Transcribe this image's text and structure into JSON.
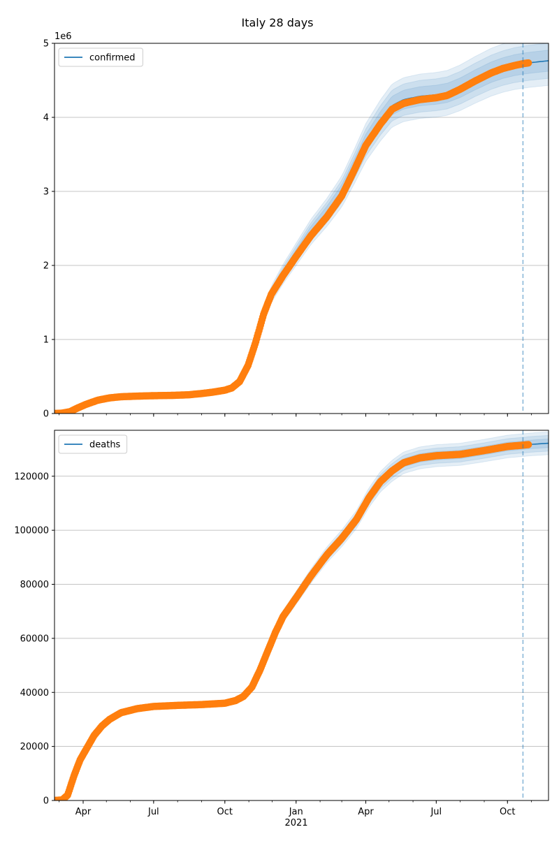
{
  "figure": {
    "title": "Italy 28 days",
    "xaxis_year_label": "2021",
    "forecast_marker_date": "2021-10-21",
    "colors": {
      "model_line": "#1f77b4",
      "observed": "#ff7f0e",
      "band": "#1f77b4",
      "grid": "#b0b0b0",
      "forecast_line": "#1f77b4"
    }
  },
  "chart_data": [
    {
      "type": "line",
      "name": "confirmed-panel",
      "legend": "confirmed",
      "legend_position": "top-left",
      "offset_label": "1e6",
      "x_range": [
        "2020-02-24",
        "2021-11-23"
      ],
      "ylim": [
        0,
        5000000
      ],
      "yticks": [
        0,
        1000000,
        2000000,
        3000000,
        4000000,
        5000000
      ],
      "ytick_labels": [
        "0",
        "1",
        "2",
        "3",
        "4",
        "5"
      ],
      "grid": "y",
      "xticks": [
        {
          "date": "2020-04-01",
          "label": "Apr"
        },
        {
          "date": "2020-07-01",
          "label": "Jul"
        },
        {
          "date": "2020-10-01",
          "label": "Oct"
        },
        {
          "date": "2021-01-01",
          "label": "Jan"
        },
        {
          "date": "2021-04-01",
          "label": "Apr"
        },
        {
          "date": "2021-07-01",
          "label": "Jul"
        },
        {
          "date": "2021-10-01",
          "label": "Oct"
        }
      ],
      "observed": [
        [
          "2020-02-24",
          0
        ],
        [
          "2020-03-05",
          5000
        ],
        [
          "2020-03-15",
          25000
        ],
        [
          "2020-03-25",
          75000
        ],
        [
          "2020-04-05",
          125000
        ],
        [
          "2020-04-20",
          180000
        ],
        [
          "2020-05-05",
          211000
        ],
        [
          "2020-05-20",
          227000
        ],
        [
          "2020-06-10",
          235000
        ],
        [
          "2020-07-01",
          241000
        ],
        [
          "2020-07-25",
          245000
        ],
        [
          "2020-08-15",
          253000
        ],
        [
          "2020-09-01",
          270000
        ],
        [
          "2020-09-15",
          288000
        ],
        [
          "2020-10-01",
          315000
        ],
        [
          "2020-10-10",
          345000
        ],
        [
          "2020-10-20",
          430000
        ],
        [
          "2020-10-31",
          650000
        ],
        [
          "2020-11-10",
          970000
        ],
        [
          "2020-11-20",
          1340000
        ],
        [
          "2020-11-30",
          1610000
        ],
        [
          "2020-12-15",
          1860000
        ],
        [
          "2021-01-01",
          2120000
        ],
        [
          "2021-01-20",
          2400000
        ],
        [
          "2021-02-10",
          2660000
        ],
        [
          "2021-03-01",
          2940000
        ],
        [
          "2021-03-15",
          3240000
        ],
        [
          "2021-04-01",
          3620000
        ],
        [
          "2021-04-20",
          3910000
        ],
        [
          "2021-05-05",
          4110000
        ],
        [
          "2021-05-20",
          4190000
        ],
        [
          "2021-06-10",
          4240000
        ],
        [
          "2021-07-01",
          4265000
        ],
        [
          "2021-07-15",
          4295000
        ],
        [
          "2021-08-01",
          4380000
        ],
        [
          "2021-08-20",
          4490000
        ],
        [
          "2021-09-10",
          4600000
        ],
        [
          "2021-09-25",
          4660000
        ],
        [
          "2021-10-10",
          4700000
        ],
        [
          "2021-10-21",
          4725000
        ],
        [
          "2021-10-28",
          4735000
        ]
      ],
      "model": [
        [
          "2020-02-24",
          0
        ],
        [
          "2020-03-05",
          5000
        ],
        [
          "2020-03-15",
          25000
        ],
        [
          "2020-03-25",
          75000
        ],
        [
          "2020-04-05",
          125000
        ],
        [
          "2020-04-20",
          180000
        ],
        [
          "2020-05-05",
          211000
        ],
        [
          "2020-05-20",
          227000
        ],
        [
          "2020-06-10",
          235000
        ],
        [
          "2020-07-01",
          241000
        ],
        [
          "2020-07-25",
          245000
        ],
        [
          "2020-08-15",
          253000
        ],
        [
          "2020-09-01",
          270000
        ],
        [
          "2020-09-15",
          288000
        ],
        [
          "2020-10-01",
          315000
        ],
        [
          "2020-10-10",
          345000
        ],
        [
          "2020-10-20",
          430000
        ],
        [
          "2020-10-31",
          650000
        ],
        [
          "2020-11-10",
          970000
        ],
        [
          "2020-11-20",
          1340000
        ],
        [
          "2020-11-30",
          1610000
        ],
        [
          "2020-12-15",
          1880000
        ],
        [
          "2021-01-01",
          2150000
        ],
        [
          "2021-01-20",
          2450000
        ],
        [
          "2021-02-10",
          2720000
        ],
        [
          "2021-03-01",
          3000000
        ],
        [
          "2021-03-15",
          3290000
        ],
        [
          "2021-04-01",
          3660000
        ],
        [
          "2021-04-20",
          3960000
        ],
        [
          "2021-05-05",
          4160000
        ],
        [
          "2021-05-20",
          4240000
        ],
        [
          "2021-06-10",
          4285000
        ],
        [
          "2021-07-01",
          4305000
        ],
        [
          "2021-07-15",
          4330000
        ],
        [
          "2021-08-01",
          4400000
        ],
        [
          "2021-08-20",
          4505000
        ],
        [
          "2021-09-10",
          4610000
        ],
        [
          "2021-09-25",
          4665000
        ],
        [
          "2021-10-10",
          4705000
        ],
        [
          "2021-10-21",
          4725000
        ],
        [
          "2021-11-01",
          4740000
        ],
        [
          "2021-11-23",
          4765000
        ]
      ],
      "band_half_widths": [
        0.03,
        0.05,
        0.07
      ]
    },
    {
      "type": "line",
      "name": "deaths-panel",
      "legend": "deaths",
      "legend_position": "top-left",
      "x_range": [
        "2020-02-24",
        "2021-11-23"
      ],
      "ylim": [
        0,
        137000
      ],
      "yticks": [
        0,
        20000,
        40000,
        60000,
        80000,
        100000,
        120000
      ],
      "ytick_labels": [
        "0",
        "20000",
        "40000",
        "60000",
        "80000",
        "100000",
        "120000"
      ],
      "grid": "y",
      "xticks": [
        {
          "date": "2020-04-01",
          "label": "Apr"
        },
        {
          "date": "2020-07-01",
          "label": "Jul"
        },
        {
          "date": "2020-10-01",
          "label": "Oct"
        },
        {
          "date": "2021-01-01",
          "label": "Jan"
        },
        {
          "date": "2021-04-01",
          "label": "Apr"
        },
        {
          "date": "2021-07-01",
          "label": "Jul"
        },
        {
          "date": "2021-10-01",
          "label": "Oct"
        }
      ],
      "observed": [
        [
          "2020-02-24",
          0
        ],
        [
          "2020-03-05",
          200
        ],
        [
          "2020-03-12",
          2000
        ],
        [
          "2020-03-20",
          9000
        ],
        [
          "2020-03-28",
          15000
        ],
        [
          "2020-04-05",
          19000
        ],
        [
          "2020-04-15",
          24000
        ],
        [
          "2020-04-25",
          27500
        ],
        [
          "2020-05-05",
          30000
        ],
        [
          "2020-05-20",
          32500
        ],
        [
          "2020-06-10",
          34000
        ],
        [
          "2020-07-01",
          34800
        ],
        [
          "2020-08-01",
          35200
        ],
        [
          "2020-09-01",
          35500
        ],
        [
          "2020-10-01",
          36000
        ],
        [
          "2020-10-15",
          37000
        ],
        [
          "2020-10-25",
          38500
        ],
        [
          "2020-11-05",
          42000
        ],
        [
          "2020-11-15",
          48000
        ],
        [
          "2020-11-25",
          55000
        ],
        [
          "2020-12-05",
          62000
        ],
        [
          "2020-12-15",
          68000
        ],
        [
          "2021-01-01",
          75000
        ],
        [
          "2021-01-20",
          83000
        ],
        [
          "2021-02-10",
          91000
        ],
        [
          "2021-03-01",
          97000
        ],
        [
          "2021-03-20",
          104000
        ],
        [
          "2021-04-05",
          112000
        ],
        [
          "2021-04-20",
          118000
        ],
        [
          "2021-05-05",
          122000
        ],
        [
          "2021-05-20",
          125000
        ],
        [
          "2021-06-10",
          126800
        ],
        [
          "2021-07-01",
          127600
        ],
        [
          "2021-08-01",
          128100
        ],
        [
          "2021-09-01",
          129500
        ],
        [
          "2021-10-01",
          131000
        ],
        [
          "2021-10-21",
          131500
        ],
        [
          "2021-10-28",
          131700
        ]
      ],
      "model": [
        [
          "2020-02-24",
          0
        ],
        [
          "2020-03-05",
          200
        ],
        [
          "2020-03-12",
          2000
        ],
        [
          "2020-03-20",
          9000
        ],
        [
          "2020-03-28",
          15000
        ],
        [
          "2020-04-05",
          19000
        ],
        [
          "2020-04-15",
          24000
        ],
        [
          "2020-04-25",
          27500
        ],
        [
          "2020-05-05",
          30000
        ],
        [
          "2020-05-20",
          32500
        ],
        [
          "2020-06-10",
          34000
        ],
        [
          "2020-07-01",
          34800
        ],
        [
          "2020-08-01",
          35200
        ],
        [
          "2020-09-01",
          35500
        ],
        [
          "2020-10-01",
          36000
        ],
        [
          "2020-10-15",
          37000
        ],
        [
          "2020-10-25",
          38500
        ],
        [
          "2020-11-05",
          42000
        ],
        [
          "2020-11-15",
          48000
        ],
        [
          "2020-11-25",
          55000
        ],
        [
          "2020-12-05",
          62000
        ],
        [
          "2020-12-15",
          68000
        ],
        [
          "2021-01-01",
          75000
        ],
        [
          "2021-01-20",
          83000
        ],
        [
          "2021-02-10",
          91000
        ],
        [
          "2021-03-01",
          97000
        ],
        [
          "2021-03-20",
          104000
        ],
        [
          "2021-04-05",
          112000
        ],
        [
          "2021-04-20",
          118000
        ],
        [
          "2021-05-05",
          122000
        ],
        [
          "2021-05-20",
          125000
        ],
        [
          "2021-06-10",
          126800
        ],
        [
          "2021-07-01",
          127600
        ],
        [
          "2021-08-01",
          128100
        ],
        [
          "2021-09-01",
          129500
        ],
        [
          "2021-10-01",
          131000
        ],
        [
          "2021-10-21",
          131500
        ],
        [
          "2021-11-01",
          131800
        ],
        [
          "2021-11-23",
          132200
        ]
      ],
      "band_half_widths": [
        0.012,
        0.022,
        0.032
      ]
    }
  ]
}
